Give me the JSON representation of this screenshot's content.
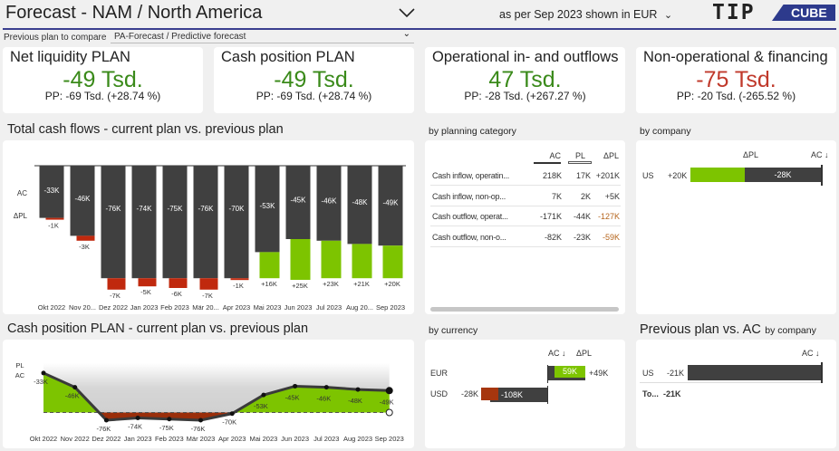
{
  "header": {
    "title": "Forecast - NAM / North America",
    "period_text": "as per Sep 2023 shown in",
    "currency": "EUR",
    "logo_left": "TIP",
    "logo_right": "CUBE",
    "compare_label": "Previous plan to compare",
    "compare_value": "PA-Forecast / Predictive forecast"
  },
  "colors": {
    "positive": "#7dc400",
    "negative": "#c0290e",
    "bar": "#404040",
    "kpi_green": "#3a8a1a",
    "kpi_red": "#c0392b",
    "accent_line": "#3a3f8f"
  },
  "kpis": [
    {
      "title": "Net liquidity PLAN",
      "value": "-49 Tsd.",
      "sub": "PP: -69 Tsd. (+28.74 %)",
      "color": "#3a8a1a"
    },
    {
      "title": "Cash position PLAN",
      "value": "-49 Tsd.",
      "sub": "PP: -69 Tsd. (+28.74 %)",
      "color": "#3a8a1a"
    },
    {
      "title": "Operational in- and outflows",
      "value": "47 Tsd.",
      "sub": "PP: -28 Tsd. (+267.27 %)",
      "color": "#3a8a1a"
    },
    {
      "title": "Non-operational & financing",
      "value": "-75 Tsd.",
      "sub": "PP: -20 Tsd. (-265.52 %)",
      "color": "#c0392b"
    }
  ],
  "chart_data": [
    {
      "type": "bar",
      "title": "Total cash flows - current plan vs. previous plan",
      "row_labels": [
        "AC",
        "ΔPL"
      ],
      "categories": [
        "Okt 2022",
        "Nov 20...",
        "Dez 2022",
        "Jan 2023",
        "Feb 2023",
        "Mär 20...",
        "Apr 2023",
        "Mai 2023",
        "Jun 2023",
        "Jul 2023",
        "Aug 20...",
        "Sep 2023"
      ],
      "series": [
        {
          "name": "AC",
          "values": [
            -33,
            -46,
            -76,
            -74,
            -75,
            -76,
            -70,
            -53,
            -45,
            -46,
            -48,
            -49
          ]
        },
        {
          "name": "ΔPL",
          "values": [
            -1,
            -3,
            -7,
            -5,
            -6,
            -7,
            -1,
            16,
            25,
            23,
            21,
            20
          ]
        }
      ],
      "ac_labels": [
        "-33K",
        "-46K",
        "-76K",
        "-74K",
        "-75K",
        "-76K",
        "-70K",
        "-53K",
        "-45K",
        "-46K",
        "-48K",
        "-49K"
      ],
      "delta_labels": [
        "-1K",
        "-3K",
        "-7K",
        "-5K",
        "-6K",
        "-7K",
        "-1K",
        "+16K",
        "+25K",
        "+23K",
        "+21K",
        "+20K"
      ]
    },
    {
      "type": "line",
      "title": "Cash position PLAN - current plan vs. previous plan",
      "row_labels": [
        "PL",
        "AC"
      ],
      "categories": [
        "Okt 2022",
        "Nov 2022",
        "Dez 2022",
        "Jan 2023",
        "Feb 2023",
        "Mär 2023",
        "Apr 2023",
        "Mai 2023",
        "Jun 2023",
        "Jul 2023",
        "Aug 2023",
        "Sep 2023"
      ],
      "series": [
        {
          "name": "AC",
          "values": [
            -33,
            -46,
            -76,
            -74,
            -75,
            -76,
            -70,
            -53,
            -45,
            -46,
            -48,
            -49
          ]
        }
      ],
      "pl_reference": -69,
      "labels": [
        "-33K",
        "-46K",
        "-76K",
        "-74K",
        "-75K",
        "-76K",
        "-70K",
        "-53K",
        "-45K",
        "-46K",
        "-48K",
        "-49K"
      ]
    }
  ],
  "planning_category": {
    "title": "by planning category",
    "columns": [
      "AC",
      "PL",
      "ΔPL"
    ],
    "rows": [
      {
        "label": "Cash inflow, operatin...",
        "ac": "218K",
        "pl": "17K",
        "delta": "+201K",
        "neg": false
      },
      {
        "label": "Cash inflow, non-op...",
        "ac": "7K",
        "pl": "2K",
        "delta": "+5K",
        "neg": false
      },
      {
        "label": "Cash outflow, operat...",
        "ac": "-171K",
        "pl": "-44K",
        "delta": "-127K",
        "neg": true
      },
      {
        "label": "Cash outflow, non-o...",
        "ac": "-82K",
        "pl": "-23K",
        "delta": "-59K",
        "neg": true
      }
    ]
  },
  "by_company": {
    "title": "by company",
    "col_delta": "ΔPL",
    "col_ac": "AC ↓",
    "row": "US",
    "delta": "+20K",
    "ac": "-28K"
  },
  "by_currency": {
    "title": "by currency",
    "col_ac": "AC ↓",
    "col_delta": "ΔPL",
    "rows": [
      {
        "label": "EUR",
        "ac": "59K",
        "delta": "+49K"
      },
      {
        "label": "USD",
        "ac": "-108K",
        "delta": "-28K"
      }
    ]
  },
  "prev_vs_ac": {
    "title": "Previous plan vs. AC",
    "subtitle": "by company",
    "col_ac": "AC ↓",
    "row": "US",
    "value": "-21K",
    "total_label": "To...",
    "total": "-21K"
  }
}
